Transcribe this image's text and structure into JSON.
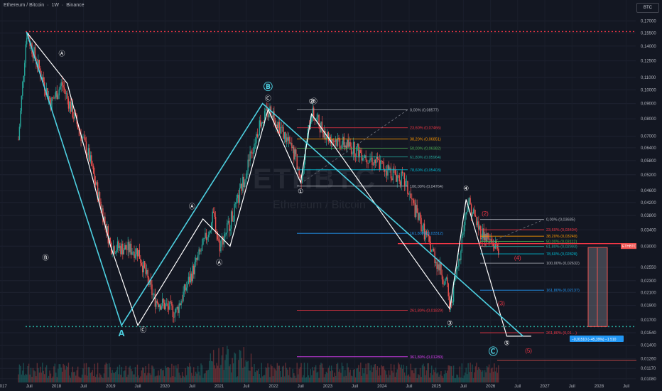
{
  "header": {
    "symbol": "Ethereum / Bitcoin",
    "sep1": "·",
    "interval": "1W",
    "sep2": "·",
    "exchange": "Binance"
  },
  "watermark": {
    "ticker": "ETHBTC",
    "name": "Ethereum / Bitcoin"
  },
  "currency_button": "BTC",
  "colors": {
    "background": "#131722",
    "up": "#26a69a",
    "down": "#ef5350",
    "impulse_line": "#4dd0e1",
    "zigzag_line": "#ffffff",
    "fib_red": "#f23645",
    "fib_blue": "#2196f3",
    "hline_red": "#f23645",
    "hline_green": "#26a69a"
  },
  "chart_data": {
    "type": "candlestick",
    "title": "Ethereum / Bitcoin · 1W · Binance",
    "y_axis": {
      "position": "right",
      "scale": "log",
      "range": [
        0.0105,
        0.185
      ],
      "tick_labels": [
        "0,17000",
        "0,15500",
        "0,14000",
        "0,12500",
        "0,11000",
        "0,10000",
        "0,09000",
        "0,08000",
        "0,07000",
        "0,06400",
        "0,05800",
        "0,05200",
        "0,04600",
        "0,04200",
        "0,03800",
        "0,03400",
        "0,03000",
        "0,02550",
        "0,02300",
        "0,02100",
        "0,01900",
        "0,01700",
        "0,01540",
        "0,01400",
        "0,01260",
        "0,01170",
        "0,01080"
      ]
    },
    "x_axis": {
      "tick_labels": [
        "2017",
        "Juil",
        "2018",
        "Juil",
        "2019",
        "Juil",
        "2020",
        "Juil",
        "2021",
        "Juil",
        "2022",
        "Juil",
        "2023",
        "Juil",
        "2024",
        "Juil",
        "2025",
        "Juil",
        "2026",
        "Juil",
        "2027",
        "Juil",
        "2028",
        "Juil"
      ]
    },
    "horizontal_levels": [
      {
        "value": 0.15659,
        "label": "0,15659",
        "style": "dotted",
        "color": "red"
      },
      {
        "value": 0.01615,
        "label": "0,01615",
        "style": "dotted",
        "color": "green"
      },
      {
        "value": 0.0306,
        "label": "0,03060",
        "style": "solid",
        "color": "red"
      }
    ],
    "last_price": {
      "symbol": "ETHBTC",
      "value": "0,02969",
      "countdown": "05:22:34"
    },
    "wave_labels": [
      "Ⓐ",
      "Ⓑ",
      "Ⓐ",
      "Ⓒ",
      "Ⓐ",
      "Ⓑ",
      "Ⓒ",
      "Ⓑ",
      "Ⓒ",
      "①",
      "②",
      "③",
      "④",
      "⑤",
      "Ⓒ",
      "(1)",
      "(2)",
      "(3)",
      "(4)",
      "(5)",
      "A",
      "B",
      "C"
    ],
    "fib_retracement_1": [
      {
        "label": "0,00% (0,08577)"
      },
      {
        "label": "23,60% (0,07466)"
      },
      {
        "label": "38,20% (0,06851)"
      },
      {
        "label": "50,00% (0,06382)"
      },
      {
        "label": "61,80% (0,05964)"
      },
      {
        "label": "78,60% (0,05403)"
      },
      {
        "label": "100,00% (0,04764)"
      },
      {
        "label": "161,80% (0,03312)"
      },
      {
        "label": "261,80% (0,01829)"
      },
      {
        "label": "361,80% (0,01280)"
      }
    ],
    "fib_retracement_2": [
      {
        "label": "0,00% (0,03685)"
      },
      {
        "label": "23,60% (0,03404)"
      },
      {
        "label": "38,20% (0,03240)"
      },
      {
        "label": "50,00% (0,03112)"
      },
      {
        "label": "61,80% (0,02993)"
      },
      {
        "label": "78,60% (0,02828)"
      },
      {
        "label": "100,00% (0,02632)"
      },
      {
        "label": "161,80% (0,02137)"
      },
      {
        "label": "261,80% (0,01…)"
      }
    ],
    "measure_box": {
      "label": "−0,01510 (−45,39%) −1 510"
    },
    "bottom_level_label": "0,01244"
  }
}
